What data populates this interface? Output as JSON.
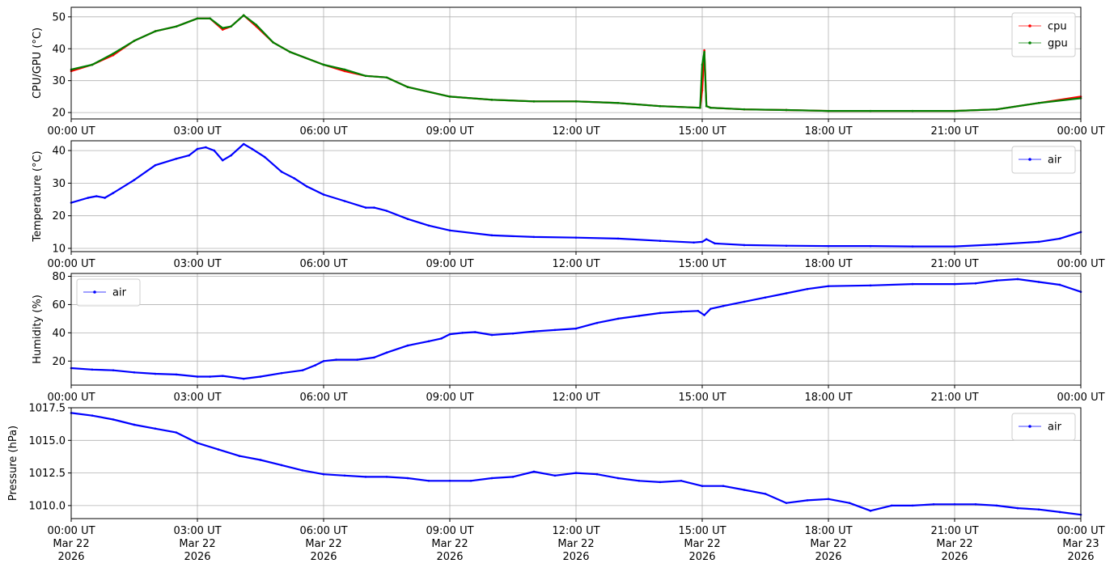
{
  "chart_data": [
    {
      "type": "line",
      "ylabel": "CPU/GPU (°C)",
      "ylim": [
        18,
        53
      ],
      "yticks": [
        20,
        30,
        40,
        50
      ],
      "ytick_labels": [
        "20",
        "30",
        "40",
        "50"
      ],
      "xlim": [
        0,
        24
      ],
      "xticks": [
        0,
        3,
        6,
        9,
        12,
        15,
        18,
        21,
        24
      ],
      "xtick_labels": [
        "00:00 UT",
        "03:00 UT",
        "06:00 UT",
        "09:00 UT",
        "12:00 UT",
        "15:00 UT",
        "18:00 UT",
        "21:00 UT",
        "00:00 UT"
      ],
      "grid": true,
      "legend": "top-right",
      "series": [
        {
          "name": "cpu",
          "color": "#ff0000",
          "x": [
            0,
            0.5,
            1,
            1.5,
            2,
            2.5,
            3,
            3.3,
            3.6,
            3.8,
            4.1,
            4.4,
            4.8,
            5.2,
            6,
            6.5,
            7,
            7.5,
            8,
            9,
            10,
            11,
            12,
            13,
            14,
            14.95,
            15.0,
            15.05,
            15.1,
            15.2,
            16,
            17,
            18,
            19,
            20,
            21,
            22,
            23,
            24
          ],
          "values": [
            33,
            35,
            38,
            42.5,
            45.5,
            47,
            49.5,
            49.5,
            46,
            47,
            50.5,
            47,
            42,
            39,
            35,
            33,
            31.5,
            31,
            28,
            25,
            24,
            23.5,
            23.5,
            23,
            22,
            21.5,
            27,
            39.5,
            22,
            21.5,
            21,
            20.8,
            20.5,
            20.5,
            20.5,
            20.5,
            21,
            23,
            25
          ]
        },
        {
          "name": "gpu",
          "color": "#008000",
          "x": [
            0,
            0.5,
            1,
            1.5,
            2,
            2.5,
            3,
            3.3,
            3.6,
            3.8,
            4.1,
            4.4,
            4.8,
            5.2,
            6,
            6.5,
            7,
            7.5,
            8,
            9,
            10,
            11,
            12,
            13,
            14,
            14.95,
            15.0,
            15.05,
            15.1,
            15.2,
            16,
            17,
            18,
            19,
            20,
            21,
            22,
            23,
            24
          ],
          "values": [
            33.5,
            35,
            38.5,
            42.5,
            45.5,
            47,
            49.5,
            49.5,
            46.5,
            47,
            50.5,
            47.5,
            42,
            39,
            35,
            33.5,
            31.5,
            31,
            28,
            25,
            24,
            23.5,
            23.5,
            23,
            22,
            21.5,
            35,
            39,
            22,
            21.5,
            21,
            20.8,
            20.5,
            20.5,
            20.5,
            20.5,
            21,
            23,
            24.5
          ]
        }
      ]
    },
    {
      "type": "line",
      "ylabel": "Temperature (°C)",
      "ylim": [
        9,
        43
      ],
      "yticks": [
        10,
        20,
        30,
        40
      ],
      "ytick_labels": [
        "10",
        "20",
        "30",
        "40"
      ],
      "xlim": [
        0,
        24
      ],
      "xticks": [
        0,
        3,
        6,
        9,
        12,
        15,
        18,
        21,
        24
      ],
      "xtick_labels": [
        "00:00 UT",
        "03:00 UT",
        "06:00 UT",
        "09:00 UT",
        "12:00 UT",
        "15:00 UT",
        "18:00 UT",
        "21:00 UT",
        "00:00 UT"
      ],
      "grid": true,
      "legend": "top-right",
      "series": [
        {
          "name": "air",
          "color": "#0000ff",
          "x": [
            0,
            0.4,
            0.6,
            0.8,
            1,
            1.5,
            2,
            2.5,
            2.8,
            3,
            3.2,
            3.4,
            3.6,
            3.8,
            4.1,
            4.3,
            4.6,
            5,
            5.3,
            5.6,
            6,
            6.5,
            7,
            7.2,
            7.5,
            8,
            8.5,
            9,
            10,
            11,
            12,
            13,
            14,
            14.8,
            15.0,
            15.1,
            15.3,
            16,
            17,
            18,
            19,
            20,
            21,
            22,
            23,
            23.5,
            24
          ],
          "values": [
            24,
            25.5,
            26,
            25.5,
            27,
            31,
            35.5,
            37.5,
            38.5,
            40.5,
            41,
            40,
            37,
            38.5,
            42,
            40.5,
            38,
            33.5,
            31.5,
            29,
            26.5,
            24.5,
            22.5,
            22.5,
            21.5,
            19,
            17,
            15.5,
            14,
            13.5,
            13.3,
            13,
            12.3,
            11.8,
            12,
            12.8,
            11.5,
            11,
            10.8,
            10.7,
            10.7,
            10.6,
            10.6,
            11.2,
            12,
            13,
            15
          ]
        }
      ]
    },
    {
      "type": "line",
      "ylabel": "Humidity (%)",
      "ylim": [
        3,
        82
      ],
      "yticks": [
        20,
        40,
        60,
        80
      ],
      "ytick_labels": [
        "20",
        "40",
        "60",
        "80"
      ],
      "xlim": [
        0,
        24
      ],
      "xticks": [
        0,
        3,
        6,
        9,
        12,
        15,
        18,
        21,
        24
      ],
      "xtick_labels": [
        "00:00 UT",
        "03:00 UT",
        "06:00 UT",
        "09:00 UT",
        "12:00 UT",
        "15:00 UT",
        "18:00 UT",
        "21:00 UT",
        "00:00 UT"
      ],
      "grid": true,
      "legend": "top-left",
      "series": [
        {
          "name": "air",
          "color": "#0000ff",
          "x": [
            0,
            0.5,
            1,
            1.5,
            2,
            2.5,
            3,
            3.3,
            3.6,
            4.1,
            4.5,
            5,
            5.5,
            5.8,
            6,
            6.3,
            6.8,
            7.2,
            7.5,
            8,
            8.5,
            8.8,
            9,
            9.3,
            9.6,
            10,
            10.5,
            11,
            11.5,
            12,
            12.5,
            13,
            13.5,
            14,
            14.5,
            14.9,
            15.05,
            15.2,
            15.5,
            16,
            16.5,
            17,
            17.5,
            18,
            19,
            20,
            21,
            21.5,
            22,
            22.5,
            23,
            23.5,
            24
          ],
          "values": [
            15,
            14,
            13.5,
            12,
            11,
            10.5,
            9,
            9,
            9.5,
            7.5,
            9,
            11.5,
            13.5,
            17,
            20,
            21,
            21,
            22.5,
            26,
            31,
            34,
            36,
            39,
            40,
            40.5,
            38.5,
            39.5,
            41,
            42,
            43,
            47,
            50,
            52,
            54,
            55,
            55.5,
            52.5,
            57,
            59,
            62,
            65,
            68,
            71,
            73,
            73.5,
            74.5,
            74.5,
            75,
            77,
            78,
            76,
            74,
            69
          ]
        }
      ]
    },
    {
      "type": "line",
      "ylabel": "Pressure (hPa)",
      "ylim": [
        1009,
        1017.5
      ],
      "yticks": [
        1010.0,
        1012.5,
        1015.0,
        1017.5
      ],
      "ytick_labels": [
        "1010.0",
        "1012.5",
        "1015.0",
        "1017.5"
      ],
      "xlim": [
        0,
        24
      ],
      "xticks": [
        0,
        3,
        6,
        9,
        12,
        15,
        18,
        21,
        24
      ],
      "xtick_labels": [
        [
          "00:00 UT",
          "Mar 22",
          "2026"
        ],
        [
          "03:00 UT",
          "Mar 22",
          "2026"
        ],
        [
          "06:00 UT",
          "Mar 22",
          "2026"
        ],
        [
          "09:00 UT",
          "Mar 22",
          "2026"
        ],
        [
          "12:00 UT",
          "Mar 22",
          "2026"
        ],
        [
          "15:00 UT",
          "Mar 22",
          "2026"
        ],
        [
          "18:00 UT",
          "Mar 22",
          "2026"
        ],
        [
          "21:00 UT",
          "Mar 22",
          "2026"
        ],
        [
          "00:00 UT",
          "Mar 23",
          "2026"
        ]
      ],
      "grid": true,
      "legend": "top-right",
      "series": [
        {
          "name": "air",
          "color": "#0000ff",
          "x": [
            0,
            0.5,
            1,
            1.5,
            2,
            2.5,
            3,
            3.5,
            4,
            4.5,
            5,
            5.5,
            6,
            6.5,
            7,
            7.5,
            8,
            8.5,
            9,
            9.5,
            10,
            10.5,
            11,
            11.5,
            12,
            12.5,
            13,
            13.5,
            14,
            14.5,
            15,
            15.5,
            16,
            16.5,
            17,
            17.5,
            18,
            18.5,
            19,
            19.5,
            20,
            20.5,
            21,
            21.5,
            22,
            22.5,
            23,
            23.5,
            24
          ],
          "values": [
            1017.1,
            1016.9,
            1016.6,
            1016.2,
            1015.9,
            1015.6,
            1014.8,
            1014.3,
            1013.8,
            1013.5,
            1013.1,
            1012.7,
            1012.4,
            1012.3,
            1012.2,
            1012.2,
            1012.1,
            1011.9,
            1011.9,
            1011.9,
            1012.1,
            1012.2,
            1012.6,
            1012.3,
            1012.5,
            1012.4,
            1012.1,
            1011.9,
            1011.8,
            1011.9,
            1011.5,
            1011.5,
            1011.2,
            1010.9,
            1010.2,
            1010.4,
            1010.5,
            1010.2,
            1009.6,
            1010.0,
            1010.0,
            1010.1,
            1010.1,
            1010.1,
            1010.0,
            1009.8,
            1009.7,
            1009.5,
            1009.3
          ]
        }
      ]
    }
  ]
}
